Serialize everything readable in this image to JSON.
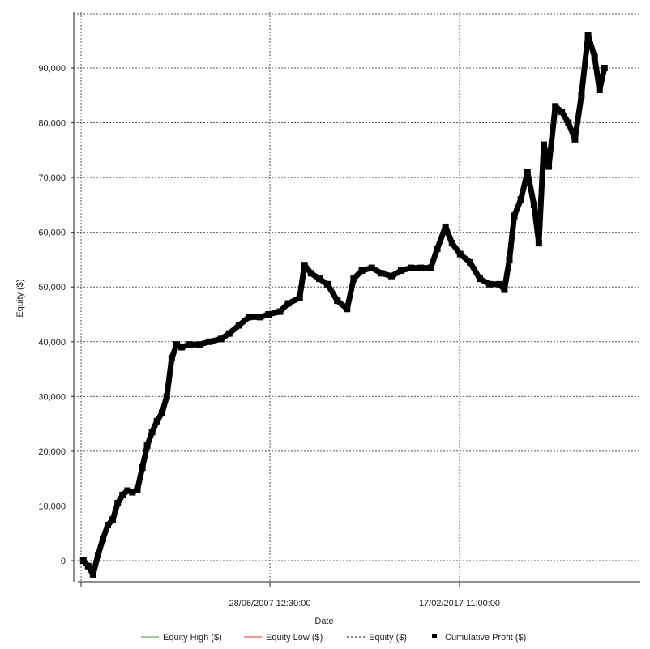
{
  "chart_data": {
    "type": "line",
    "xlabel": "Date",
    "ylabel": "Equity ($)",
    "x_tick_labels": [
      "28/06/2007 12:30:00",
      "17/02/2017 11:00:00"
    ],
    "x_range": [
      "1997-11-01",
      "2025-06-01"
    ],
    "ylim": [
      -4000,
      100000
    ],
    "y_ticks": [
      0,
      10000,
      20000,
      30000,
      40000,
      50000,
      60000,
      70000,
      80000,
      90000
    ],
    "y_tick_labels": [
      "0",
      "10,000",
      "20,000",
      "30,000",
      "40,000",
      "50,000",
      "60,000",
      "70,000",
      "80,000",
      "90,000"
    ],
    "grid": true,
    "legend_position": "bottom",
    "legend": [
      {
        "name": "Equity High ($)",
        "color": "#3a9a3a",
        "style": "solid"
      },
      {
        "name": "Equity Low ($)",
        "color": "#e03030",
        "style": "solid"
      },
      {
        "name": "Equity ($)",
        "color": "#000000",
        "style": "dashed"
      },
      {
        "name": "Cumulative Profit ($)",
        "color": "#000000",
        "style": "square-marker"
      }
    ],
    "series": [
      {
        "name": "Cumulative Profit ($)",
        "color": "#000000",
        "points": [
          [
            "1998-01-01",
            0
          ],
          [
            "1998-04-01",
            -1000
          ],
          [
            "1998-07-01",
            -2500
          ],
          [
            "1998-10-01",
            1000
          ],
          [
            "1999-01-01",
            4000
          ],
          [
            "1999-04-01",
            6500
          ],
          [
            "1999-07-01",
            7500
          ],
          [
            "1999-10-01",
            10500
          ],
          [
            "2000-01-01",
            12000
          ],
          [
            "2000-04-01",
            12800
          ],
          [
            "2000-07-01",
            12500
          ],
          [
            "2000-10-01",
            13000
          ],
          [
            "2001-01-01",
            17000
          ],
          [
            "2001-04-01",
            21000
          ],
          [
            "2001-07-01",
            23500
          ],
          [
            "2001-10-01",
            25500
          ],
          [
            "2002-01-01",
            27000
          ],
          [
            "2002-04-01",
            30000
          ],
          [
            "2002-07-01",
            37000
          ],
          [
            "2002-10-01",
            39500
          ],
          [
            "2003-01-01",
            39000
          ],
          [
            "2003-06-01",
            39500
          ],
          [
            "2003-12-01",
            39500
          ],
          [
            "2004-06-01",
            40000
          ],
          [
            "2005-01-01",
            40500
          ],
          [
            "2005-06-01",
            41500
          ],
          [
            "2005-12-01",
            43000
          ],
          [
            "2006-06-01",
            44500
          ],
          [
            "2007-01-01",
            44500
          ],
          [
            "2007-06-01",
            45000
          ],
          [
            "2008-01-01",
            45500
          ],
          [
            "2008-06-01",
            47000
          ],
          [
            "2009-01-01",
            48000
          ],
          [
            "2009-04-01",
            54000
          ],
          [
            "2009-08-01",
            52500
          ],
          [
            "2010-01-01",
            51500
          ],
          [
            "2010-06-01",
            50500
          ],
          [
            "2010-12-01",
            47500
          ],
          [
            "2011-06-01",
            46000
          ],
          [
            "2011-10-01",
            51500
          ],
          [
            "2012-03-01",
            53000
          ],
          [
            "2012-09-01",
            53500
          ],
          [
            "2013-03-01",
            52500
          ],
          [
            "2013-09-01",
            52000
          ],
          [
            "2014-03-01",
            53000
          ],
          [
            "2014-09-01",
            53500
          ],
          [
            "2015-03-01",
            53500
          ],
          [
            "2015-09-01",
            53500
          ],
          [
            "2016-01-01",
            57000
          ],
          [
            "2016-06-01",
            61000
          ],
          [
            "2016-10-01",
            58000
          ],
          [
            "2017-03-01",
            56000
          ],
          [
            "2017-09-01",
            54500
          ],
          [
            "2018-03-01",
            51500
          ],
          [
            "2018-09-01",
            50500
          ],
          [
            "2019-03-01",
            50500
          ],
          [
            "2019-06-01",
            49500
          ],
          [
            "2019-09-01",
            55000
          ],
          [
            "2019-12-01",
            63000
          ],
          [
            "2020-04-01",
            66000
          ],
          [
            "2020-08-01",
            71000
          ],
          [
            "2020-12-01",
            65000
          ],
          [
            "2021-03-01",
            58000
          ],
          [
            "2021-06-01",
            76000
          ],
          [
            "2021-09-01",
            72000
          ],
          [
            "2022-01-01",
            83000
          ],
          [
            "2022-05-01",
            82000
          ],
          [
            "2022-09-01",
            80000
          ],
          [
            "2023-01-01",
            77000
          ],
          [
            "2023-05-01",
            85000
          ],
          [
            "2023-09-01",
            96000
          ],
          [
            "2024-01-01",
            92000
          ],
          [
            "2024-04-01",
            86000
          ],
          [
            "2024-07-01",
            90000
          ]
        ]
      }
    ]
  }
}
